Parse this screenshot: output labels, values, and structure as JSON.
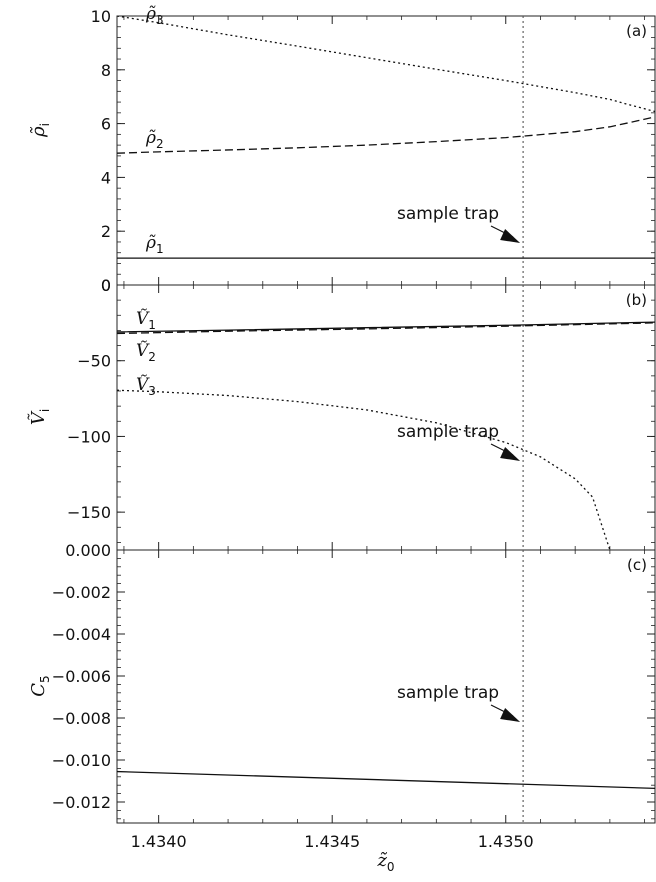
{
  "x_axis": {
    "label": "z̃0",
    "label_base": "z̃",
    "label_sub": "0",
    "range": [
      1.43388,
      1.43543
    ],
    "ticks": [
      1.434,
      1.4345,
      1.435
    ],
    "tick_labels": [
      "1.4340",
      "1.4345",
      "1.4350"
    ]
  },
  "sample_trap": {
    "x": 1.43505,
    "label": "sample trap"
  },
  "chart_data": [
    {
      "type": "line",
      "tag": "(a)",
      "ylabel": "ρ̃i",
      "ylabel_base": "ρ̃",
      "ylabel_sub": "i",
      "ylim": [
        0,
        10
      ],
      "yticks": [
        0,
        2,
        4,
        6,
        8,
        10
      ],
      "ytick_labels": [
        "0",
        "2",
        "4",
        "6",
        "8",
        "10"
      ],
      "series": [
        {
          "name": "ρ̃1",
          "name_base": "ρ̃",
          "name_sub": "1",
          "style": "solid",
          "x": [
            1.43388,
            1.4345,
            1.435,
            1.43543
          ],
          "y": [
            1.0,
            1.0,
            1.0,
            1.0
          ]
        },
        {
          "name": "ρ̃2",
          "name_base": "ρ̃",
          "name_sub": "2",
          "style": "dashed",
          "x": [
            1.43388,
            1.434,
            1.4342,
            1.4344,
            1.4346,
            1.4348,
            1.435,
            1.4352,
            1.4353,
            1.43535,
            1.43543
          ],
          "y": [
            4.9,
            4.95,
            5.02,
            5.1,
            5.2,
            5.33,
            5.48,
            5.7,
            5.88,
            6.02,
            6.25
          ]
        },
        {
          "name": "ρ̃3",
          "name_base": "ρ̃",
          "name_sub": "3",
          "style": "dotted",
          "x": [
            1.43388,
            1.434,
            1.4342,
            1.4344,
            1.4346,
            1.4348,
            1.435,
            1.4352,
            1.4353,
            1.43535,
            1.43543
          ],
          "y": [
            10.0,
            9.75,
            9.3,
            8.88,
            8.45,
            8.02,
            7.6,
            7.15,
            6.9,
            6.72,
            6.45
          ]
        }
      ]
    },
    {
      "type": "line",
      "tag": "(b)",
      "ylabel": "Ṽi",
      "ylabel_base": "Ṽ",
      "ylabel_sub": "i",
      "ylim": [
        -175,
        0
      ],
      "yticks": [
        -150,
        -100,
        -50,
        0
      ],
      "ytick_labels": [
        "−150",
        "−100",
        "−50",
        "0"
      ],
      "series": [
        {
          "name": "Ṽ1",
          "name_base": "Ṽ",
          "name_sub": "1",
          "style": "solid",
          "x": [
            1.43388,
            1.4342,
            1.4346,
            1.435,
            1.43543
          ],
          "y": [
            -31.0,
            -29.8,
            -28.2,
            -26.6,
            -24.5
          ]
        },
        {
          "name": "Ṽ2",
          "name_base": "Ṽ",
          "name_sub": "2",
          "style": "dashed",
          "x": [
            1.43388,
            1.4342,
            1.4346,
            1.435,
            1.43543
          ],
          "y": [
            -32.0,
            -30.5,
            -29.0,
            -27.2,
            -25.0
          ]
        },
        {
          "name": "Ṽ3",
          "name_base": "Ṽ",
          "name_sub": "3",
          "style": "dotted",
          "x": [
            1.43388,
            1.434,
            1.4342,
            1.4344,
            1.4346,
            1.4348,
            1.435,
            1.4351,
            1.4352,
            1.43525,
            1.4353
          ],
          "y": [
            -69.5,
            -70.5,
            -73.0,
            -77.0,
            -82.5,
            -91.0,
            -104.0,
            -113.5,
            -128.0,
            -140.0,
            -175.0
          ]
        }
      ]
    },
    {
      "type": "line",
      "tag": "(c)",
      "ylabel": "C5",
      "ylabel_base": "C",
      "ylabel_sub": "5",
      "ylim": [
        -0.013,
        0.0
      ],
      "yticks": [
        -0.012,
        -0.01,
        -0.008,
        -0.006,
        -0.004,
        -0.002,
        0.0
      ],
      "ytick_labels": [
        "−0.012",
        "−0.010",
        "−0.008",
        "−0.006",
        "−0.004",
        "−0.002",
        "0.000"
      ],
      "series": [
        {
          "name": "",
          "style": "solid",
          "x": [
            1.43388,
            1.43543
          ],
          "y": [
            -0.01055,
            -0.01135
          ]
        }
      ]
    }
  ]
}
